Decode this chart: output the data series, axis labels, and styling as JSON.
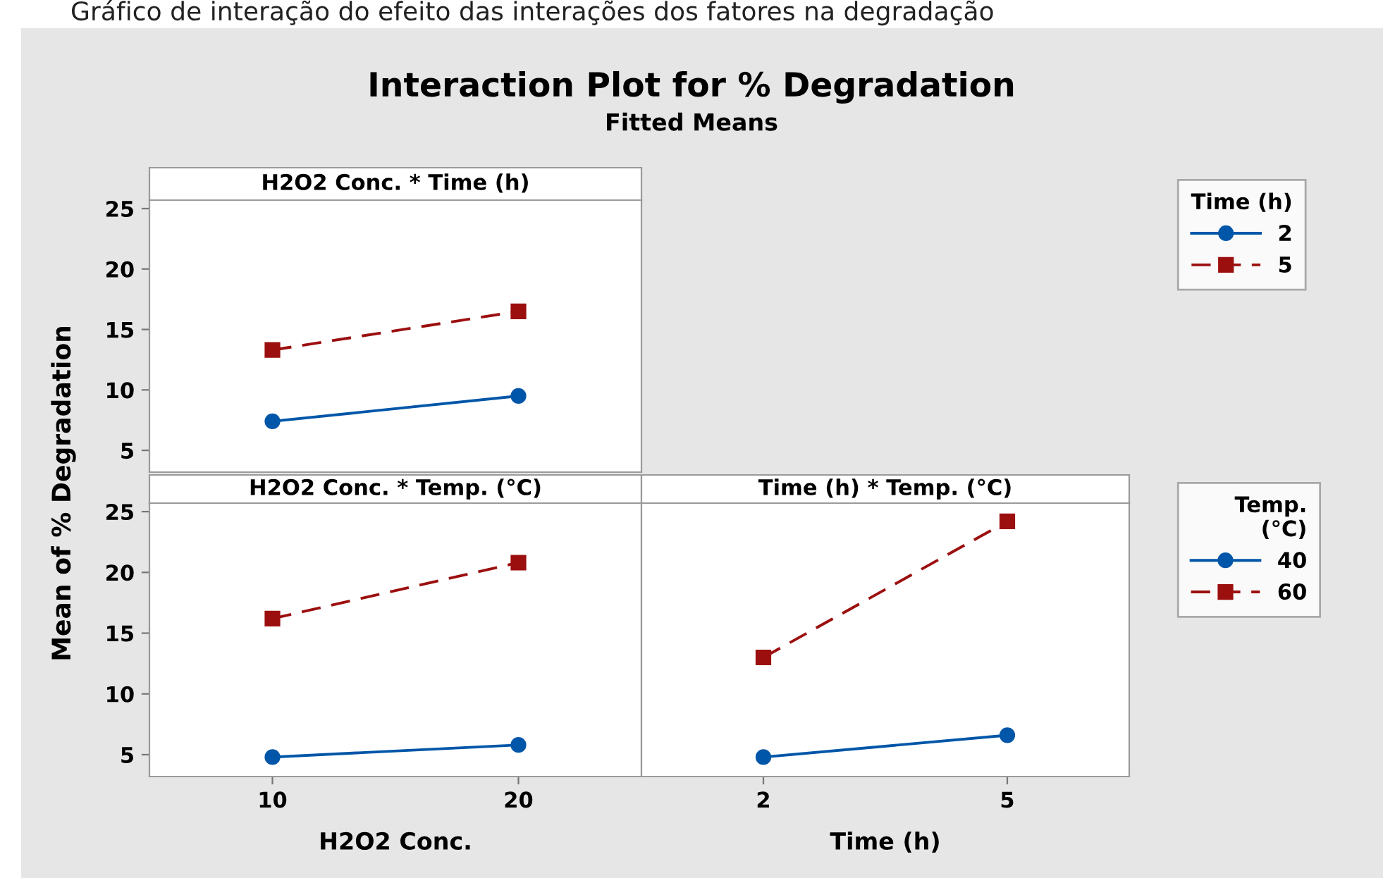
{
  "chart_data": [
    {
      "type": "other",
      "title": "Interaction Plot for % Degradation",
      "subtitle": "Fitted Means",
      "annotations": [
        "Gráfico de interação do efeito das interações dos fatores na degradação"
      ]
    },
    {
      "type": "line",
      "title": "H2O2 Conc. * Time (h)",
      "ylabel": "Mean of % Degradation",
      "x": [
        10,
        20
      ],
      "xlim": [
        5,
        25
      ],
      "xticks": [
        10,
        20
      ],
      "ylim": [
        3.2,
        25.7
      ],
      "yticks": [
        5,
        10,
        15,
        20,
        25
      ],
      "tick_labels": "y",
      "grid": false,
      "legend": "right",
      "legend_title": "Time (h)",
      "series": [
        {
          "name": "2",
          "color": "#0056a8",
          "marker": "circle",
          "line_style": "solid",
          "values": [
            7.4,
            9.5
          ]
        },
        {
          "name": "5",
          "color": "#9c0f0f",
          "marker": "square",
          "line_style": "dashed",
          "values": [
            13.3,
            16.5
          ]
        }
      ]
    },
    {
      "type": "line",
      "title": "H2O2 Conc. * Temp. (°C)",
      "xlabel": "H2O2 Conc.",
      "x": [
        10,
        20
      ],
      "xlim": [
        5,
        25
      ],
      "xticks": [
        10,
        20
      ],
      "ylim": [
        3.2,
        25.7
      ],
      "yticks": [
        5,
        10,
        15,
        20,
        25
      ],
      "grid": false,
      "series": [
        {
          "color": "#0056a8",
          "marker": "circle",
          "line_style": "solid",
          "values": [
            4.8,
            5.8
          ]
        },
        {
          "color": "#9c0f0f",
          "marker": "square",
          "line_style": "dashed",
          "values": [
            16.2,
            20.8
          ]
        }
      ]
    },
    {
      "type": "line",
      "title": "Time (h) * Temp. (°C)",
      "xlabel": "Time (h)",
      "x": [
        2,
        5
      ],
      "xlim": [
        0.5,
        6.5
      ],
      "xticks": [
        2,
        5
      ],
      "ylim": [
        3.2,
        25.7
      ],
      "yticks": [
        5,
        10,
        15,
        20,
        25
      ],
      "tick_labels": "x",
      "grid": false,
      "legend": "right",
      "legend_title": "Temp.\n(°C)",
      "series": [
        {
          "name": "40",
          "color": "#0056a8",
          "marker": "circle",
          "line_style": "solid",
          "values": [
            4.8,
            6.6
          ]
        },
        {
          "name": "60",
          "color": "#9c0f0f",
          "marker": "square",
          "line_style": "dashed",
          "values": [
            13.0,
            24.2
          ]
        }
      ]
    }
  ]
}
